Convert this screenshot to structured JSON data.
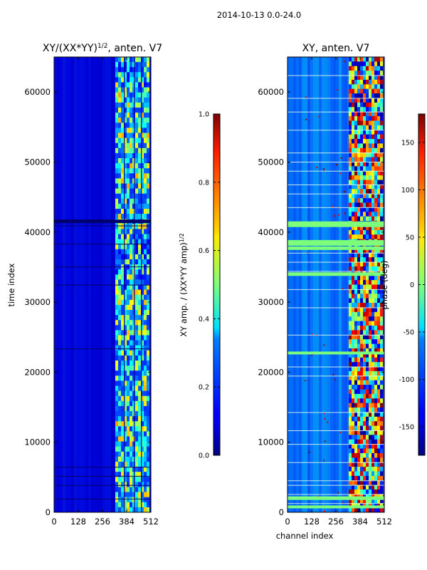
{
  "suptitle": "2014-10-13 0.0-24.0",
  "chart_data": [
    {
      "type": "heatmap",
      "title": "XY/(XX*YY)",
      "title_superscript": "1/2",
      "title_suffix": ", anten. V7",
      "xlabel": "",
      "ylabel": "time index",
      "xlim": [
        0,
        512
      ],
      "ylim": [
        0,
        65000
      ],
      "x_ticks": [
        0,
        128,
        256,
        384,
        512
      ],
      "y_ticks": [
        0,
        10000,
        20000,
        30000,
        40000,
        50000,
        60000
      ],
      "colormap": "jet",
      "colorbar": {
        "label": "XY amp. / (XX*YY amp)",
        "label_superscript": "1/2",
        "range": [
          0.0,
          1.0
        ],
        "ticks": [
          "0.0",
          "0.2",
          "0.4",
          "0.6",
          "0.8",
          "1.0"
        ]
      }
    },
    {
      "type": "heatmap",
      "title": "XY, anten. V7",
      "xlabel": "channel index",
      "ylabel": "",
      "xlim": [
        0,
        512
      ],
      "ylim": [
        0,
        65000
      ],
      "x_ticks": [
        0,
        128,
        256,
        384,
        512
      ],
      "y_ticks": [
        0,
        10000,
        20000,
        30000,
        40000,
        50000,
        60000
      ],
      "colormap": "jet",
      "colorbar": {
        "label": "phase (deg)",
        "range": [
          -180,
          180
        ],
        "ticks": [
          -150,
          -100,
          -50,
          0,
          50,
          100,
          150
        ]
      }
    }
  ]
}
